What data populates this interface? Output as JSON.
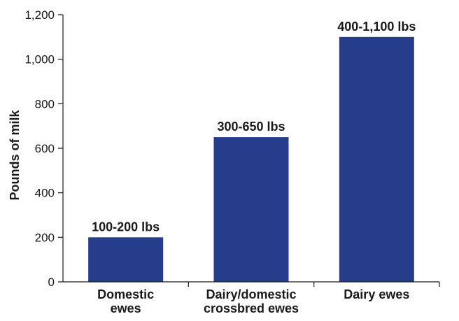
{
  "chart_data": {
    "type": "bar",
    "categories": [
      [
        "Domestic",
        "ewes"
      ],
      [
        "Dairy/domestic",
        "crossbred ewes"
      ],
      [
        "Dairy ewes"
      ]
    ],
    "values": [
      200,
      650,
      1100
    ],
    "data_labels": [
      "100-200 lbs",
      "300-650 lbs",
      "400-1,100 lbs"
    ],
    "ylabel": "Pounds of milk",
    "ylim": [
      0,
      1200
    ],
    "yticks": [
      0,
      200,
      400,
      600,
      800,
      1000,
      1200
    ],
    "ytick_labels": [
      "0",
      "200",
      "400",
      "600",
      "800",
      "1,000",
      "1,200"
    ],
    "grid": false,
    "bar_color": "#253d8b"
  }
}
